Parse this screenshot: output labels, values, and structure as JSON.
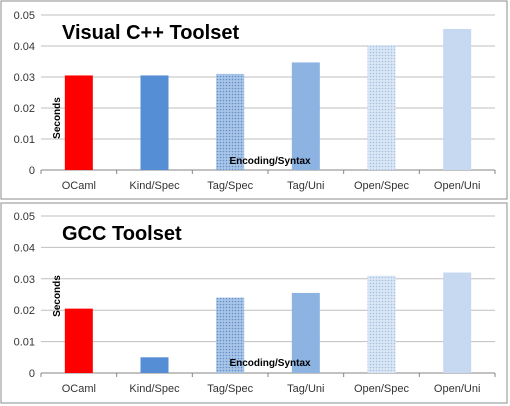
{
  "chart_data": [
    {
      "type": "bar",
      "title": "Visual C++ Toolset",
      "xlabel": "Encoding/Syntax",
      "ylabel": "Seconds",
      "ylim": [
        0,
        0.05
      ],
      "yticks": [
        "0",
        "0.01",
        "0.02",
        "0.03",
        "0.04",
        "0.05"
      ],
      "grid": true,
      "categories": [
        "OCaml",
        "Kind/Spec",
        "Tag/Spec",
        "Tag/Uni",
        "Open/Spec",
        "Open/Uni"
      ],
      "values": [
        0.0305,
        0.0305,
        0.031,
        0.0347,
        0.0403,
        0.0455
      ],
      "bar_colors": [
        "#ff0000",
        "#558ed5",
        "#8db3e2",
        "#8db3e2",
        "#c6d9f1",
        "#c6d9f1"
      ],
      "bar_patterns": [
        "solid",
        "solid",
        "dots",
        "solid",
        "dots",
        "solid"
      ]
    },
    {
      "type": "bar",
      "title": "GCC Toolset",
      "xlabel": "Encoding/Syntax",
      "ylabel": "Seconds",
      "ylim": [
        0,
        0.05
      ],
      "yticks": [
        "0",
        "0.01",
        "0.02",
        "0.03",
        "0.04",
        "0.05"
      ],
      "grid": true,
      "categories": [
        "OCaml",
        "Kind/Spec",
        "Tag/Spec",
        "Tag/Uni",
        "Open/Spec",
        "Open/Uni"
      ],
      "values": [
        0.0205,
        0.005,
        0.024,
        0.0255,
        0.031,
        0.032
      ],
      "bar_colors": [
        "#ff0000",
        "#558ed5",
        "#8db3e2",
        "#8db3e2",
        "#c6d9f1",
        "#c6d9f1"
      ],
      "bar_patterns": [
        "solid",
        "solid",
        "dots",
        "solid",
        "dots",
        "solid"
      ]
    }
  ]
}
